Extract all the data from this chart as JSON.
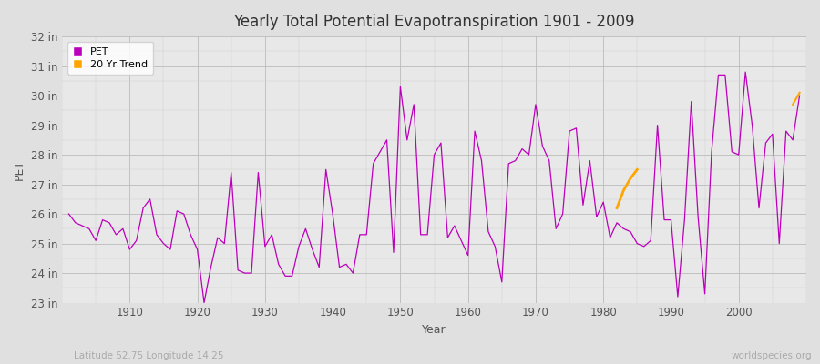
{
  "title": "Yearly Total Potential Evapotranspiration 1901 - 2009",
  "xlabel": "Year",
  "ylabel": "PET",
  "subtitle_left": "Latitude 52.75 Longitude 14.25",
  "subtitle_right": "worldspecies.org",
  "pet_color": "#BB00BB",
  "trend_color": "#FFA500",
  "background_color": "#E0E0E0",
  "plot_background": "#E8E8E8",
  "ylim": [
    23,
    32
  ],
  "xlim": [
    1900,
    2010
  ],
  "years": [
    1901,
    1902,
    1903,
    1904,
    1905,
    1906,
    1907,
    1908,
    1909,
    1910,
    1911,
    1912,
    1913,
    1914,
    1915,
    1916,
    1917,
    1918,
    1919,
    1920,
    1921,
    1922,
    1923,
    1924,
    1925,
    1926,
    1927,
    1928,
    1929,
    1930,
    1931,
    1932,
    1933,
    1934,
    1935,
    1936,
    1937,
    1938,
    1939,
    1940,
    1941,
    1942,
    1943,
    1944,
    1945,
    1946,
    1947,
    1948,
    1949,
    1950,
    1951,
    1952,
    1953,
    1954,
    1955,
    1956,
    1957,
    1958,
    1959,
    1960,
    1961,
    1962,
    1963,
    1964,
    1965,
    1966,
    1967,
    1968,
    1969,
    1970,
    1971,
    1972,
    1973,
    1974,
    1975,
    1976,
    1977,
    1978,
    1979,
    1980,
    1981,
    1982,
    1983,
    1984,
    1985,
    1986,
    1987,
    1988,
    1989,
    1990,
    1991,
    1992,
    1993,
    1994,
    1995,
    1996,
    1997,
    1998,
    1999,
    2000,
    2001,
    2002,
    2003,
    2004,
    2005,
    2006,
    2007,
    2008,
    2009
  ],
  "pet_values": [
    26.0,
    25.7,
    25.6,
    25.5,
    25.1,
    25.8,
    25.7,
    25.3,
    25.5,
    24.8,
    25.1,
    26.2,
    26.5,
    25.3,
    25.0,
    24.8,
    26.1,
    26.0,
    25.3,
    24.8,
    23.0,
    24.2,
    25.2,
    25.0,
    27.4,
    24.1,
    24.0,
    24.0,
    27.4,
    24.9,
    25.3,
    24.3,
    23.9,
    23.9,
    24.9,
    25.5,
    24.8,
    24.2,
    27.5,
    26.0,
    24.2,
    24.3,
    24.0,
    25.3,
    25.3,
    27.7,
    28.1,
    28.5,
    24.7,
    30.3,
    28.5,
    29.7,
    25.3,
    25.3,
    28.0,
    28.4,
    25.2,
    25.6,
    25.1,
    24.6,
    28.8,
    27.8,
    25.4,
    24.9,
    23.7,
    27.7,
    27.8,
    28.2,
    28.0,
    29.7,
    28.3,
    27.8,
    25.5,
    26.0,
    28.8,
    28.9,
    26.3,
    27.8,
    25.9,
    26.4,
    25.2,
    25.7,
    25.5,
    25.4,
    25.0,
    24.9,
    25.1,
    29.0,
    25.8,
    25.8,
    23.2,
    25.8,
    29.8,
    25.9,
    23.3,
    28.1,
    30.7,
    30.7,
    28.1,
    28.0,
    30.8,
    29.0,
    26.2,
    28.4,
    28.7,
    25.0,
    28.8,
    28.5,
    30.0
  ],
  "trend_years": [
    1982,
    1983,
    1984,
    1985
  ],
  "trend_values": [
    26.2,
    26.8,
    27.2,
    27.5
  ],
  "trend2_years": [
    2008,
    2009
  ],
  "trend2_values": [
    29.7,
    30.1
  ]
}
